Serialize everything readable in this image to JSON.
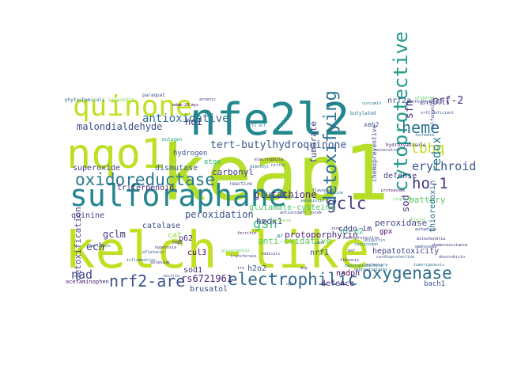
{
  "word_cloud": {
    "background": "#ffffff",
    "words": [
      {
        "text": "keap1",
        "color": "#b5de2b"
      },
      {
        "text": "kelch-like",
        "color": "#c2df23"
      },
      {
        "text": "nfe2l2",
        "color": "#23888e"
      },
      {
        "text": "nqo1",
        "color": "#bddf26"
      },
      {
        "text": "quinone",
        "color": "#c2df23"
      },
      {
        "text": "sulforaphane",
        "color": "#25848e"
      },
      {
        "text": "oxidoreductase",
        "color": "#2a788e"
      },
      {
        "text": "detoxifying",
        "color": "#2d708e"
      },
      {
        "text": "cytoprotective",
        "color": "#1f9a8a"
      },
      {
        "text": "electrophilic",
        "color": "#31688e"
      },
      {
        "text": "oxygenase",
        "color": "#2e6e8e"
      },
      {
        "text": "nrf2-are",
        "color": "#3b528b"
      },
      {
        "text": "heme",
        "color": "#2c728e"
      },
      {
        "text": "ho-1",
        "color": "#453781"
      },
      {
        "text": "gclc",
        "color": "#433e85"
      },
      {
        "text": "tbhq",
        "color": "#c0df25"
      },
      {
        "text": "gsh",
        "color": "#3fbc73"
      },
      {
        "text": "antioxidative",
        "color": "#2d708e"
      },
      {
        "text": "tert-butylhydroquinone",
        "color": "#38588c"
      },
      {
        "text": "erythroid",
        "color": "#39568c"
      },
      {
        "text": "nrf-2",
        "color": "#472d7b"
      },
      {
        "text": "malondialdehyde",
        "color": "#3e4a89"
      },
      {
        "text": "glutathione",
        "color": "#482475"
      },
      {
        "text": "redox",
        "color": "#2a788e"
      },
      {
        "text": "sod",
        "color": "#481f70"
      },
      {
        "text": "nad",
        "color": "#414487"
      },
      {
        "text": "ech",
        "color": "#3e4989"
      },
      {
        "text": "gclm",
        "color": "#46327e"
      },
      {
        "text": "peroxidation",
        "color": "#3a538b"
      },
      {
        "text": "sfn",
        "color": "#482878"
      },
      {
        "text": "ho1",
        "color": "#453882"
      },
      {
        "text": "superoxide",
        "color": "#404688"
      },
      {
        "text": "dismutase",
        "color": "#365c8d"
      },
      {
        "text": "hydrogen",
        "color": "#3b528b"
      },
      {
        "text": "triterpenoid",
        "color": "#482878"
      },
      {
        "text": "carbonyl",
        "color": "#433d84"
      },
      {
        "text": "fumarate",
        "color": "#404588"
      },
      {
        "text": "glutamate-cysteine",
        "color": "#4ac16d"
      },
      {
        "text": "hmox1",
        "color": "#433e85"
      },
      {
        "text": "protoporphyrin",
        "color": "#482677"
      },
      {
        "text": "cddo-im",
        "color": "#46337f"
      },
      {
        "text": "battery",
        "color": "#5cc863"
      },
      {
        "text": "peroxidase",
        "color": "#3f4788"
      },
      {
        "text": "hepatotoxicity",
        "color": "#414287"
      },
      {
        "text": "thioredoxin",
        "color": "#2c718e"
      },
      {
        "text": "defense",
        "color": "#433e85"
      },
      {
        "text": "catalase",
        "color": "#3e4a89"
      },
      {
        "text": "cul3",
        "color": "#440154"
      },
      {
        "text": "p62",
        "color": "#472c7a"
      },
      {
        "text": "anti-oxidative",
        "color": "#5ec962"
      },
      {
        "text": "nrf1",
        "color": "#3b528b"
      },
      {
        "text": "rs6721961",
        "color": "#482173"
      },
      {
        "text": "brusatol",
        "color": "#3f4889"
      },
      {
        "text": "h2o2",
        "color": "#3b518b"
      },
      {
        "text": "nadph",
        "color": "#450559"
      },
      {
        "text": "defence",
        "color": "#472e7c"
      },
      {
        "text": "bach1",
        "color": "#3e4c8a"
      },
      {
        "text": "detoxification",
        "color": "#414487"
      },
      {
        "text": "quinine",
        "color": "#453781"
      },
      {
        "text": "sod1",
        "color": "#46327e"
      },
      {
        "text": "nrf2a",
        "color": "#3b518b"
      },
      {
        "text": "nf-e2",
        "color": "#2fb47c"
      },
      {
        "text": "gpx",
        "color": "#440154"
      },
      {
        "text": "cat",
        "color": "#9bd93c"
      },
      {
        "text": "nqo",
        "color": "#404688"
      },
      {
        "text": "insults",
        "color": "#433e85"
      },
      {
        "text": "xeh2",
        "color": "#3a538b"
      },
      {
        "text": "etge",
        "color": "#2fb47c"
      },
      {
        "text": "acetaminophen",
        "color": "#482475"
      },
      {
        "text": "ar",
        "color": "#2d708e"
      },
      {
        "text": "chemopreventive",
        "color": "#3e4a89"
      },
      {
        "text": "reactive",
        "color": "#3e4989"
      },
      {
        "text": "phytochemicals",
        "color": "#2c728e"
      },
      {
        "text": "cigarette",
        "color": "#84d44b"
      },
      {
        "text": "paraquat",
        "color": "#3b528b"
      },
      {
        "text": "adam-28 mys",
        "color": "#440154"
      },
      {
        "text": "arsenic",
        "color": "#472c7a"
      },
      {
        "text": "mutagen",
        "color": "#22a785"
      },
      {
        "text": "butylated",
        "color": "#2c728e"
      },
      {
        "text": "hydroxyanisole",
        "color": "#482374"
      },
      {
        "text": "sulfonamide",
        "color": "#3f4788"
      },
      {
        "text": "sulfhydryl",
        "color": "#414487"
      },
      {
        "text": "nrf2-deficient",
        "color": "#3b528b"
      },
      {
        "text": "curcumin",
        "color": "#2a788e"
      },
      {
        "text": "oltipraz",
        "color": "#5ec962"
      },
      {
        "text": "resveratrol",
        "color": "#3e4989"
      },
      {
        "text": "ischemia",
        "color": "#2c728e"
      },
      {
        "text": "mitochondria",
        "color": "#472c7a"
      },
      {
        "text": "emphysema",
        "color": "#3b528b"
      },
      {
        "text": "autophagy",
        "color": "#404688"
      },
      {
        "text": "lipid",
        "color": "#7ad151"
      },
      {
        "text": "proteasome",
        "color": "#481f70"
      },
      {
        "text": "ubiquitin",
        "color": "#31688e"
      },
      {
        "text": "carcinogen",
        "color": "#2a788e"
      },
      {
        "text": "pulmonary",
        "color": "#3b528b"
      },
      {
        "text": "fibrosis",
        "color": "#482878"
      },
      {
        "text": "xenobiotic",
        "color": "#2c718e"
      },
      {
        "text": "flavonoid",
        "color": "#3e4a89"
      },
      {
        "text": "hyperoxia",
        "color": "#443a83"
      },
      {
        "text": "inflammation",
        "color": "#31688e"
      },
      {
        "text": "aflatoxin",
        "color": "#3b528b"
      },
      {
        "text": "glucuronosyl",
        "color": "#5ec962"
      },
      {
        "text": "transferase",
        "color": "#404688"
      },
      {
        "text": "ferritin",
        "color": "#482475"
      },
      {
        "text": "radicals",
        "color": "#3e4989"
      },
      {
        "text": "dimethyl",
        "color": "#2c728e"
      },
      {
        "text": "electrophile",
        "color": "#472c7a"
      },
      {
        "text": "nitric",
        "color": "#414487"
      },
      {
        "text": "oxide",
        "color": "#3b528b"
      },
      {
        "text": "cysteine",
        "color": "#2a788e"
      },
      {
        "text": "zinc",
        "color": "#482878"
      },
      {
        "text": "maf",
        "color": "#3e4a89"
      },
      {
        "text": "smaf",
        "color": "#31688e"
      },
      {
        "text": "antioxidant",
        "color": "#404688"
      },
      {
        "text": "response",
        "color": "#7ad151"
      },
      {
        "text": "element",
        "color": "#3b528b"
      },
      {
        "text": "trx",
        "color": "#482475"
      },
      {
        "text": "gst",
        "color": "#2c718e"
      },
      {
        "text": "ugt",
        "color": "#3e4989"
      },
      {
        "text": "mrp",
        "color": "#472c7a"
      },
      {
        "text": "hepatoprotective",
        "color": "#2a788e"
      },
      {
        "text": "neuroprotective",
        "color": "#414487"
      },
      {
        "text": "cardioprotective",
        "color": "#3b528b"
      },
      {
        "text": "nephrotoxicity",
        "color": "#31688e"
      },
      {
        "text": "cisplatin",
        "color": "#5ec962"
      },
      {
        "text": "doxorubicin",
        "color": "#3e4a89"
      },
      {
        "text": "chemoresistance",
        "color": "#482878"
      },
      {
        "text": "tumorigenesis",
        "color": "#2c728e"
      },
      {
        "text": "a-lipoic",
        "color": "#404688"
      },
      {
        "text": "selenium",
        "color": "#472c7a"
      },
      {
        "text": "sestrin",
        "color": "#3b528b"
      },
      {
        "text": "nrf2 act",
        "color": "#2a788e"
      }
    ]
  }
}
